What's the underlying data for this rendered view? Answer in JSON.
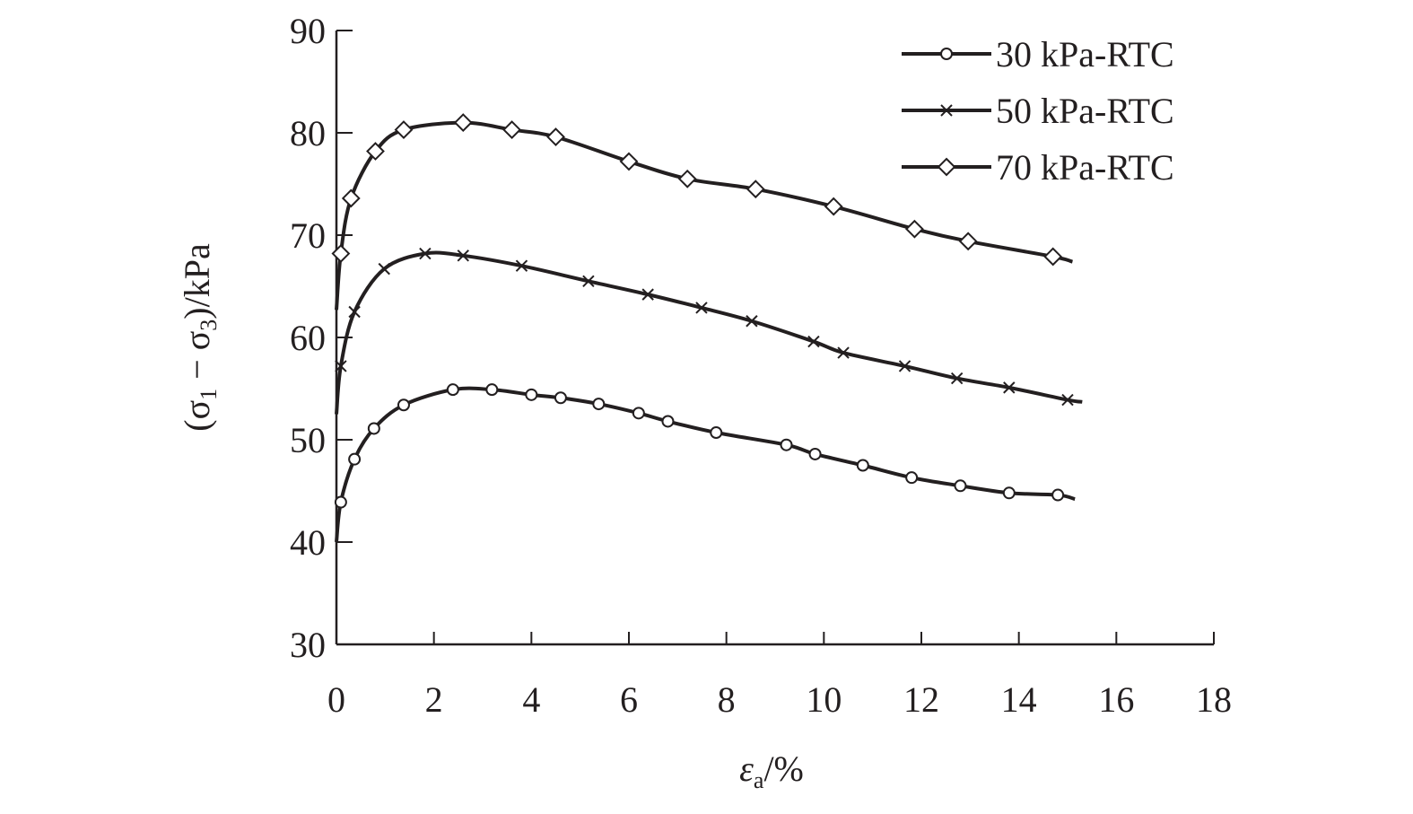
{
  "chart_data": {
    "type": "line",
    "title": "",
    "xlabel_parts": [
      "ε",
      "a",
      "/%"
    ],
    "ylabel_parts": [
      "(σ",
      "1",
      " − σ",
      "3",
      ")/kPa"
    ],
    "xlim": [
      0,
      18
    ],
    "ylim": [
      30,
      90
    ],
    "xticks": [
      0,
      2,
      4,
      6,
      8,
      10,
      12,
      14,
      16,
      18
    ],
    "yticks": [
      30,
      40,
      50,
      60,
      70,
      80,
      90
    ],
    "grid": false,
    "legend_position": "top-right",
    "line_color": "#231f20",
    "series": [
      {
        "name": "30 kPa-RTC",
        "marker": "circle",
        "x": [
          0,
          0.09,
          0.37,
          0.77,
          1.38,
          2.39,
          3.19,
          4.0,
          4.6,
          5.38,
          6.2,
          6.8,
          7.79,
          9.23,
          9.82,
          10.8,
          11.8,
          12.8,
          13.8,
          14.8,
          15.15
        ],
        "y": [
          40.0,
          43.9,
          48.1,
          51.1,
          53.4,
          54.9,
          54.9,
          54.4,
          54.1,
          53.5,
          52.6,
          51.8,
          50.7,
          49.5,
          48.6,
          47.5,
          46.3,
          45.5,
          44.8,
          44.6,
          44.2
        ]
      },
      {
        "name": "50 kPa-RTC",
        "marker": "cross",
        "x": [
          0,
          0.09,
          0.37,
          0.98,
          1.82,
          2.6,
          3.8,
          5.17,
          6.39,
          7.49,
          8.52,
          9.79,
          10.4,
          11.66,
          12.73,
          13.8,
          15.0,
          15.3
        ],
        "y": [
          52.5,
          57.2,
          62.5,
          66.7,
          68.2,
          68.0,
          67.0,
          65.5,
          64.2,
          62.9,
          61.6,
          59.6,
          58.5,
          57.2,
          56.0,
          55.1,
          53.9,
          53.7
        ]
      },
      {
        "name": "70 kPa-RTC",
        "marker": "diamond",
        "x": [
          0,
          0.09,
          0.3,
          0.8,
          1.38,
          2.6,
          3.6,
          4.5,
          6.0,
          7.2,
          8.6,
          10.2,
          11.86,
          12.96,
          14.7,
          15.1
        ],
        "y": [
          62.7,
          68.2,
          73.6,
          78.2,
          80.3,
          81.0,
          80.3,
          79.6,
          77.2,
          75.5,
          74.5,
          72.8,
          70.6,
          69.4,
          67.9,
          67.4
        ]
      }
    ]
  }
}
